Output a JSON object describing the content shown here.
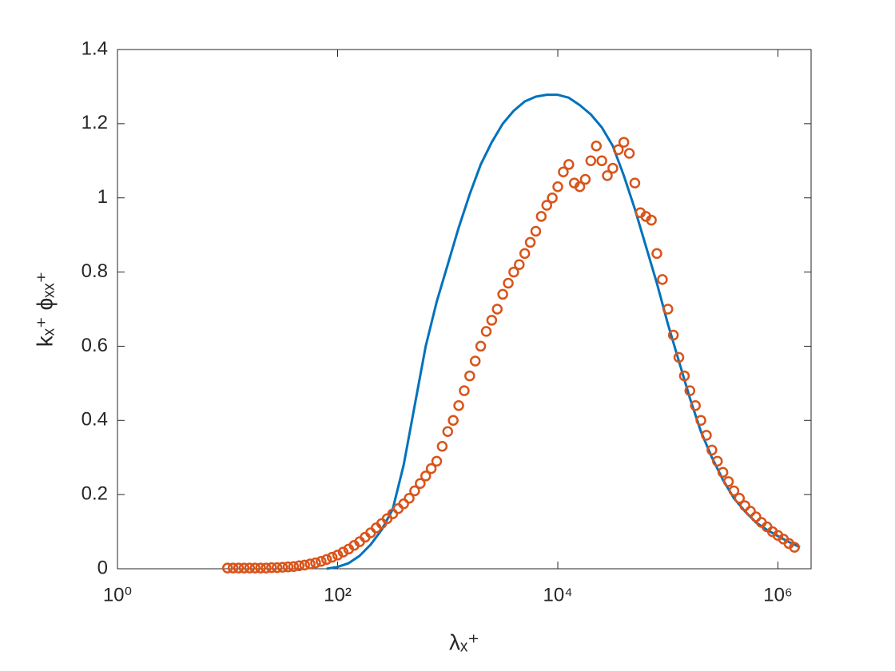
{
  "chart_data": {
    "type": "line",
    "xlabel": "λₓ⁺",
    "ylabel": "kₓ⁺ ϕₓₓ⁺",
    "xscale": "log",
    "box": true,
    "xlim": [
      1,
      2000000
    ],
    "ylim": [
      0,
      1.4
    ],
    "xticks": [
      {
        "value": 1,
        "label": "10⁰"
      },
      {
        "value": 100,
        "label": "10²"
      },
      {
        "value": 10000,
        "label": "10⁴"
      },
      {
        "value": 1000000,
        "label": "10⁶"
      }
    ],
    "yticks": [
      0,
      0.2,
      0.4,
      0.6,
      0.8,
      1,
      1.2,
      1.4
    ],
    "series": [
      {
        "type": "line",
        "color": "#0072BD",
        "x": [
          79.4,
          100,
          125.9,
          158.5,
          199.5,
          251.2,
          316.2,
          398.1,
          501.2,
          631,
          794.3,
          1000,
          1259,
          1585,
          1995,
          2512,
          3162,
          3981,
          5012,
          6310,
          7943,
          10000,
          12589,
          15849,
          19953,
          25119,
          31623,
          39811,
          50119,
          63096,
          79433,
          100000,
          125893,
          158489,
          199526,
          251189,
          316228,
          398107,
          501187,
          630957,
          794328,
          1000000,
          1258925,
          1584893
        ],
        "values": [
          0,
          0.005,
          0.015,
          0.035,
          0.065,
          0.105,
          0.16,
          0.28,
          0.44,
          0.6,
          0.72,
          0.82,
          0.92,
          1.01,
          1.09,
          1.15,
          1.2,
          1.235,
          1.26,
          1.273,
          1.278,
          1.278,
          1.27,
          1.25,
          1.225,
          1.19,
          1.14,
          1.06,
          0.97,
          0.87,
          0.77,
          0.66,
          0.56,
          0.46,
          0.37,
          0.3,
          0.24,
          0.19,
          0.155,
          0.125,
          0.105,
          0.088,
          0.072,
          0.058
        ]
      },
      {
        "type": "scatter",
        "color": "#D95319",
        "x": [
          10,
          11.22,
          12.59,
          14.13,
          15.85,
          17.78,
          19.95,
          22.39,
          25.12,
          28.18,
          31.62,
          35.48,
          39.81,
          44.67,
          50.12,
          56.23,
          63.1,
          70.79,
          79.43,
          89.13,
          100,
          112.2,
          125.9,
          141.3,
          158.5,
          177.8,
          199.5,
          223.9,
          251.2,
          281.8,
          316.2,
          354.8,
          398.1,
          446.7,
          501.2,
          562.3,
          631,
          707.9,
          794.3,
          891.3,
          1000,
          1122,
          1259,
          1413,
          1585,
          1778,
          1995,
          2239,
          2512,
          2818,
          3162,
          3548,
          3981,
          4467,
          5012,
          5623,
          6310,
          7079,
          7943,
          8913,
          10000,
          11220,
          12589,
          14125,
          15849,
          17783,
          19953,
          22387,
          25119,
          28184,
          31623,
          35481,
          39811,
          44668,
          50119,
          56234,
          63096,
          70795,
          79433,
          89125,
          100000,
          112202,
          125893,
          141254,
          158489,
          177828,
          199526,
          223872,
          251189,
          281838,
          316228,
          354813,
          398107,
          446684,
          501187,
          562341,
          630957,
          707946,
          794328,
          891251,
          1000000,
          1122018,
          1258925,
          1412538
        ],
        "values": [
          0.002,
          0.002,
          0.002,
          0.002,
          0.002,
          0.002,
          0.002,
          0.002,
          0.003,
          0.003,
          0.004,
          0.005,
          0.006,
          0.008,
          0.01,
          0.013,
          0.016,
          0.02,
          0.025,
          0.031,
          0.037,
          0.045,
          0.053,
          0.063,
          0.073,
          0.085,
          0.097,
          0.11,
          0.122,
          0.135,
          0.148,
          0.162,
          0.175,
          0.19,
          0.21,
          0.23,
          0.25,
          0.27,
          0.29,
          0.33,
          0.37,
          0.4,
          0.44,
          0.48,
          0.52,
          0.56,
          0.6,
          0.64,
          0.67,
          0.7,
          0.74,
          0.77,
          0.8,
          0.82,
          0.85,
          0.88,
          0.91,
          0.95,
          0.98,
          1.0,
          1.03,
          1.07,
          1.09,
          1.04,
          1.03,
          1.05,
          1.1,
          1.14,
          1.1,
          1.06,
          1.08,
          1.13,
          1.15,
          1.12,
          1.04,
          0.96,
          0.95,
          0.94,
          0.85,
          0.78,
          0.7,
          0.63,
          0.57,
          0.52,
          0.48,
          0.44,
          0.4,
          0.36,
          0.32,
          0.29,
          0.26,
          0.235,
          0.21,
          0.19,
          0.17,
          0.155,
          0.14,
          0.125,
          0.113,
          0.1,
          0.09,
          0.08,
          0.068,
          0.058
        ]
      }
    ]
  }
}
